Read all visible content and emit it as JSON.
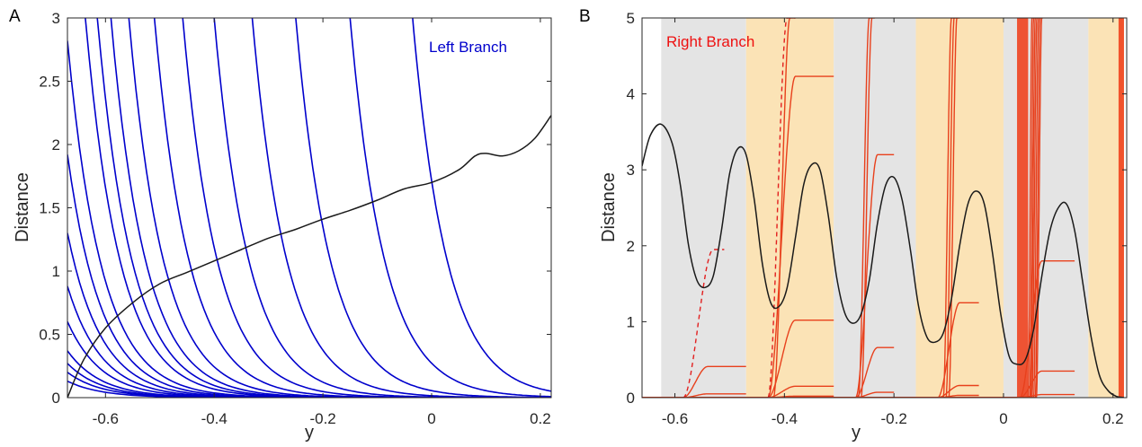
{
  "chart_data": [
    {
      "panel": "A",
      "type": "line",
      "xlabel": "y",
      "ylabel": "Distance",
      "xlim": [
        -0.67,
        0.22
      ],
      "ylim": [
        0,
        3
      ],
      "xticks": [
        -0.6,
        -0.4,
        -0.2,
        0,
        0.2
      ],
      "xtick_labels": [
        "-0.6",
        "-0.4",
        "-0.2",
        "0",
        "0.2"
      ],
      "yticks": [
        0,
        0.5,
        1,
        1.5,
        2,
        2.5,
        3
      ],
      "ytick_labels": [
        "0",
        "0.5",
        "1",
        "1.5",
        "2",
        "2.5",
        "3"
      ],
      "annotation": {
        "text": "Left Branch",
        "color": "#0000cc",
        "position": "top-right"
      },
      "grid": false,
      "colors": {
        "branch": "#0000cc",
        "reference": "#1a1a1a"
      },
      "black_curve": {
        "x": [
          -0.67,
          -0.64,
          -0.6,
          -0.55,
          -0.5,
          -0.45,
          -0.4,
          -0.35,
          -0.3,
          -0.25,
          -0.2,
          -0.15,
          -0.1,
          -0.05,
          0.0,
          0.05,
          0.08,
          0.1,
          0.13,
          0.16,
          0.19,
          0.22
        ],
        "y": [
          0.0,
          0.3,
          0.55,
          0.75,
          0.9,
          0.99,
          1.08,
          1.17,
          1.26,
          1.33,
          1.41,
          1.48,
          1.56,
          1.65,
          1.7,
          1.8,
          1.91,
          1.93,
          1.91,
          1.95,
          2.05,
          2.23
        ]
      },
      "blue_curves": [
        {
          "x0": -0.67,
          "y0": 0.13,
          "k": 16
        },
        {
          "x0": -0.67,
          "y0": 0.2,
          "k": 16
        },
        {
          "x0": -0.67,
          "y0": 0.27,
          "k": 16
        },
        {
          "x0": -0.67,
          "y0": 0.37,
          "k": 16
        },
        {
          "x0": -0.67,
          "y0": 0.6,
          "k": 16
        },
        {
          "x0": -0.67,
          "y0": 0.88,
          "k": 16
        },
        {
          "x0": -0.67,
          "y0": 1.3,
          "k": 16
        },
        {
          "x0": -0.67,
          "y0": 1.92,
          "k": 16
        },
        {
          "x0": -0.67,
          "y0": 2.82,
          "k": 16
        },
        {
          "x0": -0.637,
          "y0": 3.0,
          "k": 16
        },
        {
          "x0": -0.615,
          "y0": 3.0,
          "k": 16
        },
        {
          "x0": -0.59,
          "y0": 3.0,
          "k": 16
        },
        {
          "x0": -0.557,
          "y0": 3.0,
          "k": 16
        },
        {
          "x0": -0.51,
          "y0": 3.0,
          "k": 16
        },
        {
          "x0": -0.458,
          "y0": 3.0,
          "k": 16
        },
        {
          "x0": -0.4,
          "y0": 3.0,
          "k": 16
        },
        {
          "x0": -0.33,
          "y0": 3.0,
          "k": 16
        },
        {
          "x0": -0.25,
          "y0": 3.0,
          "k": 16
        },
        {
          "x0": -0.15,
          "y0": 3.0,
          "k": 16
        },
        {
          "x0": -0.035,
          "y0": 3.0,
          "k": 16
        }
      ]
    },
    {
      "panel": "B",
      "type": "line",
      "xlabel": "y",
      "ylabel": "Distance",
      "xlim": [
        -0.66,
        0.225
      ],
      "ylim": [
        0,
        5
      ],
      "xticks": [
        -0.6,
        -0.4,
        -0.2,
        0,
        0.2
      ],
      "xtick_labels": [
        "-0.6",
        "-0.4",
        "-0.2",
        "0",
        "0.2"
      ],
      "yticks": [
        0,
        1,
        2,
        3,
        4,
        5
      ],
      "ytick_labels": [
        "0",
        "1",
        "2",
        "3",
        "4",
        "5"
      ],
      "annotation": {
        "text": "Right Branch",
        "color": "#ee1111",
        "position": "top-left"
      },
      "grid": false,
      "colors": {
        "branch": "#e8401c",
        "reference": "#1a1a1a",
        "gray_band": "#e4e4e4",
        "tan_band": "#fbe3b6",
        "dense": "#f03a14"
      },
      "bands": [
        {
          "x": [
            -0.625,
            -0.47
          ],
          "color": "gray"
        },
        {
          "x": [
            -0.47,
            -0.31
          ],
          "color": "tan"
        },
        {
          "x": [
            -0.31,
            -0.16
          ],
          "color": "gray"
        },
        {
          "x": [
            -0.16,
            0.0
          ],
          "color": "tan"
        },
        {
          "x": [
            0.0,
            0.155
          ],
          "color": "gray"
        },
        {
          "x": [
            0.155,
            0.22
          ],
          "color": "tan"
        }
      ],
      "black_curve": {
        "x": [
          -0.66,
          -0.645,
          -0.625,
          -0.605,
          -0.59,
          -0.575,
          -0.56,
          -0.545,
          -0.53,
          -0.515,
          -0.5,
          -0.485,
          -0.47,
          -0.455,
          -0.44,
          -0.425,
          -0.41,
          -0.395,
          -0.38,
          -0.365,
          -0.35,
          -0.335,
          -0.32,
          -0.305,
          -0.29,
          -0.275,
          -0.26,
          -0.245,
          -0.23,
          -0.215,
          -0.2,
          -0.185,
          -0.17,
          -0.155,
          -0.14,
          -0.125,
          -0.11,
          -0.095,
          -0.08,
          -0.065,
          -0.05,
          -0.035,
          -0.02,
          -0.005,
          0.01,
          0.025,
          0.04,
          0.055,
          0.07,
          0.085,
          0.1,
          0.115,
          0.13,
          0.145,
          0.16,
          0.175,
          0.19,
          0.205,
          0.22
        ],
        "y": [
          3.05,
          3.45,
          3.6,
          3.35,
          2.8,
          2.0,
          1.55,
          1.45,
          1.6,
          2.2,
          2.95,
          3.28,
          3.2,
          2.6,
          1.75,
          1.25,
          1.2,
          1.45,
          2.1,
          2.8,
          3.07,
          3.0,
          2.4,
          1.6,
          1.12,
          0.98,
          1.1,
          1.55,
          2.3,
          2.8,
          2.9,
          2.6,
          1.95,
          1.2,
          0.8,
          0.73,
          0.85,
          1.3,
          2.0,
          2.55,
          2.72,
          2.55,
          1.9,
          1.1,
          0.55,
          0.44,
          0.5,
          0.9,
          1.6,
          2.2,
          2.5,
          2.55,
          2.2,
          1.5,
          0.8,
          0.3,
          0.1,
          0.02,
          0.0
        ]
      },
      "dashed_curves": [
        {
          "x0": -0.56,
          "plateau": 1.95,
          "rise_start": -0.585,
          "rise_end": -0.53,
          "x_end": -0.51
        },
        {
          "x0": -0.43,
          "plateau": 5.0,
          "rise_start": -0.43,
          "rise_end": -0.395,
          "x_end": -0.38
        }
      ],
      "red_curves": [
        {
          "rise_start": -0.585,
          "rise_end": -0.54,
          "plateau": 0.41,
          "x_end": -0.47
        },
        {
          "rise_start": -0.585,
          "rise_end": -0.54,
          "plateau": 0.05,
          "x_end": -0.47
        },
        {
          "rise_start": -0.43,
          "rise_end": -0.38,
          "plateau": 4.23,
          "x_end": -0.31
        },
        {
          "rise_start": -0.43,
          "rise_end": -0.38,
          "plateau": 1.02,
          "x_end": -0.31
        },
        {
          "rise_start": -0.43,
          "rise_end": -0.38,
          "plateau": 0.15,
          "x_end": -0.31
        },
        {
          "rise_start": -0.43,
          "rise_end": -0.38,
          "plateau": 0.02,
          "x_end": -0.31
        },
        {
          "rise_start": -0.42,
          "rise_end": -0.39,
          "plateau": 5.0,
          "x_end": -0.38
        },
        {
          "rise_start": -0.27,
          "rise_end": -0.23,
          "plateau": 3.2,
          "x_end": -0.2
        },
        {
          "rise_start": -0.27,
          "rise_end": -0.23,
          "plateau": 0.66,
          "x_end": -0.2
        },
        {
          "rise_start": -0.27,
          "rise_end": -0.23,
          "plateau": 0.07,
          "x_end": -0.2
        },
        {
          "rise_start": -0.265,
          "rise_end": -0.245,
          "plateau": 5.0,
          "x_end": -0.24
        },
        {
          "rise_start": -0.26,
          "rise_end": -0.24,
          "plateau": 5.0,
          "x_end": -0.235
        },
        {
          "rise_start": -0.12,
          "rise_end": -0.08,
          "plateau": 1.25,
          "x_end": -0.045
        },
        {
          "rise_start": -0.12,
          "rise_end": -0.08,
          "plateau": 0.16,
          "x_end": -0.045
        },
        {
          "rise_start": -0.12,
          "rise_end": -0.08,
          "plateau": 0.03,
          "x_end": -0.045
        },
        {
          "rise_start": -0.11,
          "rise_end": -0.095,
          "plateau": 5.0,
          "x_end": -0.09
        },
        {
          "rise_start": -0.105,
          "rise_end": -0.09,
          "plateau": 5.0,
          "x_end": -0.085
        },
        {
          "rise_start": -0.1,
          "rise_end": -0.085,
          "plateau": 5.0,
          "x_end": -0.08
        },
        {
          "rise_start": 0.03,
          "rise_end": 0.07,
          "plateau": 1.8,
          "x_end": 0.13
        },
        {
          "rise_start": 0.03,
          "rise_end": 0.07,
          "plateau": 0.35,
          "x_end": 0.13
        },
        {
          "rise_start": 0.03,
          "rise_end": 0.07,
          "plateau": 0.04,
          "x_end": 0.13
        },
        {
          "rise_start": 0.045,
          "rise_end": 0.052,
          "plateau": 5.0,
          "x_end": 0.054
        },
        {
          "rise_start": 0.048,
          "rise_end": 0.055,
          "plateau": 5.0,
          "x_end": 0.057
        },
        {
          "rise_start": 0.05,
          "rise_end": 0.058,
          "plateau": 5.0,
          "x_end": 0.06
        },
        {
          "rise_start": 0.052,
          "rise_end": 0.061,
          "plateau": 5.0,
          "x_end": 0.063
        },
        {
          "rise_start": 0.055,
          "rise_end": 0.064,
          "plateau": 5.0,
          "x_end": 0.066
        },
        {
          "rise_start": 0.058,
          "rise_end": 0.067,
          "plateau": 5.0,
          "x_end": 0.069
        },
        {
          "rise_start": 0.06,
          "rise_end": 0.07,
          "plateau": 5.0,
          "x_end": 0.072
        }
      ],
      "dense_regions": [
        {
          "x": [
            0.0,
            0.045
          ]
        },
        {
          "x": [
            0.198,
            0.22
          ]
        }
      ]
    }
  ]
}
